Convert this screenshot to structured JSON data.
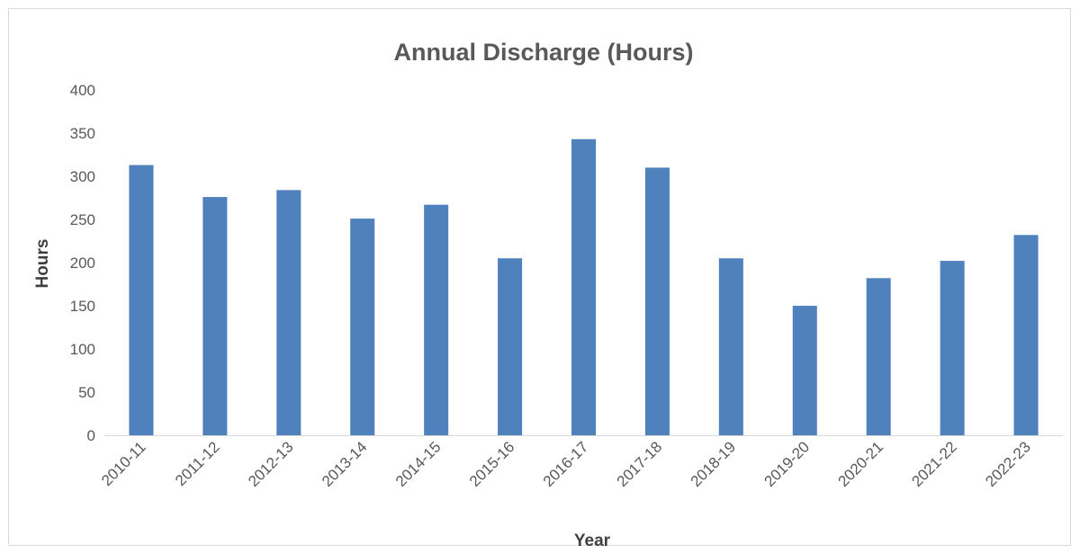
{
  "chart_data": {
    "type": "bar",
    "title": "Annual Discharge (Hours)",
    "xlabel": "Year",
    "ylabel": "Hours",
    "ylim": [
      0,
      400
    ],
    "yticks": [
      0,
      50,
      100,
      150,
      200,
      250,
      300,
      350,
      400
    ],
    "categories": [
      "2010-11",
      "2011-12",
      "2012-13",
      "2013-14",
      "2014-15",
      "2015-16",
      "2016-17",
      "2017-18",
      "2018-19",
      "2019-20",
      "2020-21",
      "2021-22",
      "2022-23"
    ],
    "values": [
      313,
      276,
      284,
      251,
      267,
      205,
      343,
      310,
      205,
      150,
      182,
      202,
      232
    ],
    "bar_color": "#4f81bd",
    "grid": false,
    "legend": "none"
  }
}
